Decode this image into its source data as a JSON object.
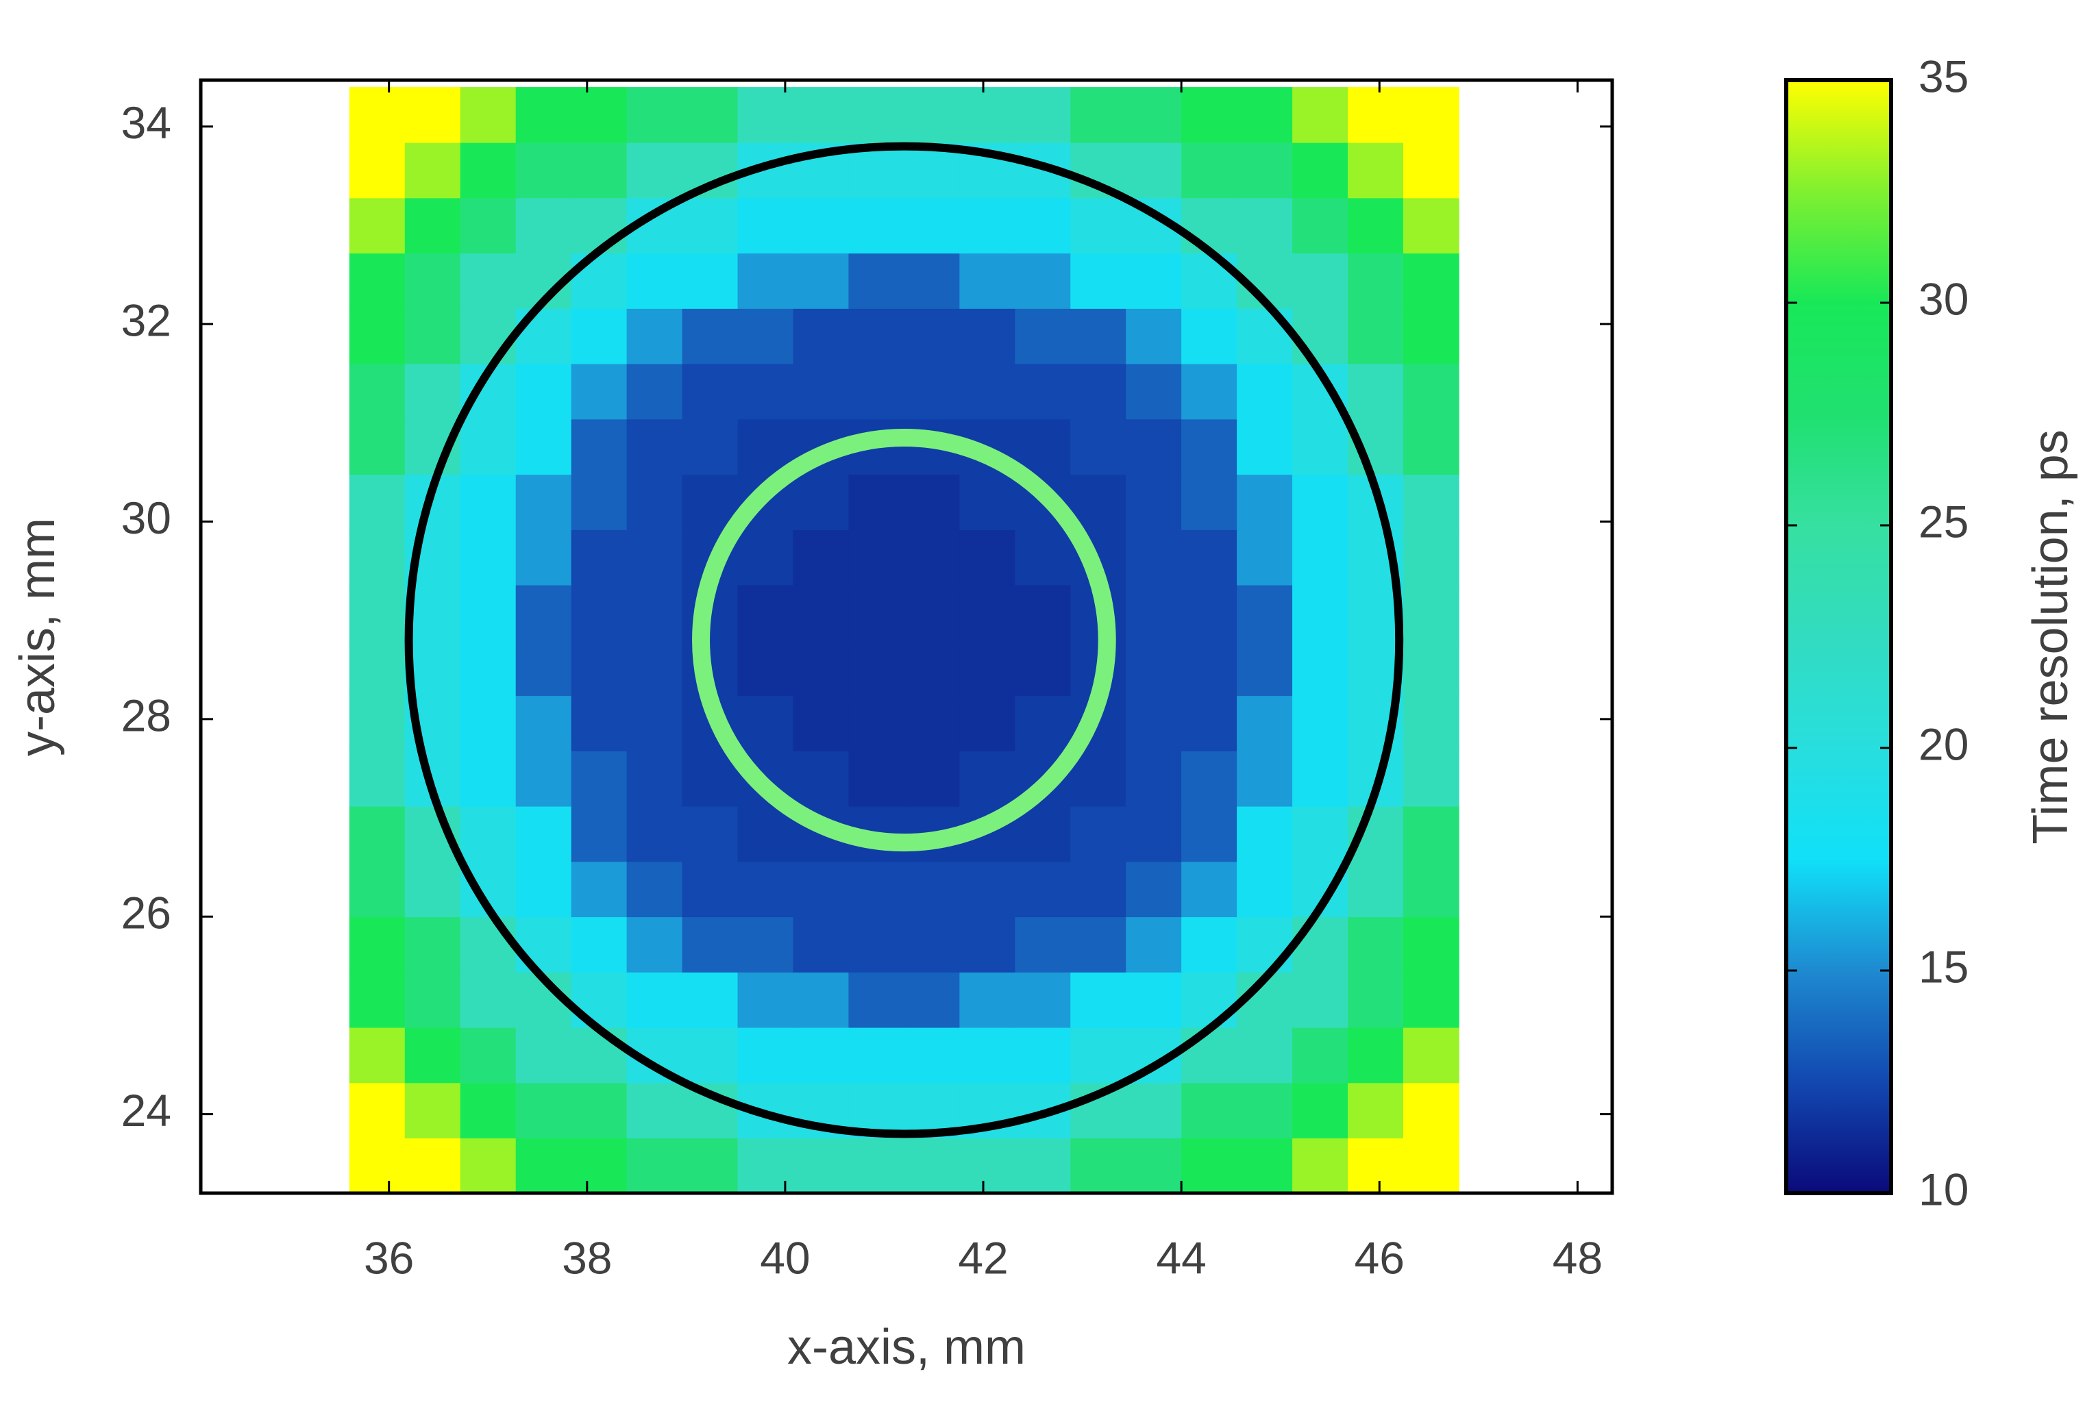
{
  "chart_data": {
    "type": "heatmap",
    "xlabel": "x-axis, mm",
    "ylabel": "y-axis, mm",
    "colorbar_label": "Time resolution, ps",
    "x": [
      35.88,
      36.44,
      37,
      37.56,
      38.12,
      38.68,
      39.24,
      39.8,
      40.36,
      40.92,
      41.48,
      42.04,
      42.6,
      43.16,
      43.72,
      44.28,
      44.84,
      45.4,
      45.96,
      46.52
    ],
    "y": [
      23.48,
      24.04,
      24.6,
      25.16,
      25.72,
      26.28,
      26.84,
      27.4,
      27.96,
      28.52,
      29.08,
      29.64,
      30.2,
      30.76,
      31.32,
      31.88,
      32.44,
      33,
      33.56,
      34.12
    ],
    "z": [
      [
        35,
        35,
        33,
        30,
        30,
        27,
        27,
        23,
        23,
        23,
        23,
        23,
        23,
        27,
        27,
        30,
        30,
        33,
        35,
        35
      ],
      [
        35,
        33,
        30,
        27,
        27,
        23,
        23,
        19.5,
        19.5,
        19.5,
        19.5,
        19.5,
        19.5,
        23,
        23,
        27,
        27,
        30,
        33,
        35
      ],
      [
        33,
        30,
        27,
        23,
        23,
        19.5,
        19.5,
        18,
        18,
        18,
        18,
        18,
        18,
        19.5,
        19.5,
        23,
        23,
        27,
        30,
        33
      ],
      [
        30,
        27,
        23,
        23,
        19.5,
        18,
        18,
        15.5,
        15.5,
        13.5,
        13.5,
        15.5,
        15.5,
        18,
        18,
        19.5,
        23,
        23,
        27,
        30
      ],
      [
        30,
        27,
        23,
        19.5,
        18,
        15.5,
        13.5,
        13.5,
        12.5,
        12.5,
        12.5,
        12.5,
        13.5,
        13.5,
        15.5,
        18,
        19.5,
        23,
        27,
        30
      ],
      [
        27,
        23,
        19.5,
        18,
        15.5,
        13.5,
        12.5,
        12.5,
        12.5,
        12.5,
        12.5,
        12.5,
        12.5,
        12.5,
        13.5,
        15.5,
        18,
        19.5,
        23,
        27
      ],
      [
        27,
        23,
        19.5,
        18,
        13.5,
        12.5,
        12.5,
        12,
        12,
        12,
        12,
        12,
        12,
        12.5,
        12.5,
        13.5,
        18,
        19.5,
        23,
        27
      ],
      [
        23,
        19.5,
        18,
        15.5,
        13.5,
        12.5,
        12,
        12,
        12,
        11.5,
        11.5,
        12,
        12,
        12,
        12.5,
        13.5,
        15.5,
        18,
        19.5,
        23
      ],
      [
        23,
        19.5,
        18,
        15.5,
        12.5,
        12.5,
        12,
        12,
        11.5,
        11.5,
        11.5,
        11.5,
        12,
        12,
        12.5,
        12.5,
        15.5,
        18,
        19.5,
        23
      ],
      [
        23,
        19.5,
        18,
        13.5,
        12.5,
        12.5,
        12,
        11.5,
        11.5,
        11.5,
        11.5,
        11.5,
        11.5,
        12,
        12.5,
        12.5,
        13.5,
        18,
        19.5,
        23
      ],
      [
        23,
        19.5,
        18,
        13.5,
        12.5,
        12.5,
        12,
        11.5,
        11.5,
        11.5,
        11.5,
        11.5,
        11.5,
        12,
        12.5,
        12.5,
        13.5,
        18,
        19.5,
        23
      ],
      [
        23,
        19.5,
        18,
        15.5,
        12.5,
        12.5,
        12,
        12,
        11.5,
        11.5,
        11.5,
        11.5,
        12,
        12,
        12.5,
        12.5,
        15.5,
        18,
        19.5,
        23
      ],
      [
        23,
        19.5,
        18,
        15.5,
        13.5,
        12.5,
        12,
        12,
        12,
        11.5,
        11.5,
        12,
        12,
        12,
        12.5,
        13.5,
        15.5,
        18,
        19.5,
        23
      ],
      [
        27,
        23,
        19.5,
        18,
        13.5,
        12.5,
        12.5,
        12,
        12,
        12,
        12,
        12,
        12,
        12.5,
        12.5,
        13.5,
        18,
        19.5,
        23,
        27
      ],
      [
        27,
        23,
        19.5,
        18,
        15.5,
        13.5,
        12.5,
        12.5,
        12.5,
        12.5,
        12.5,
        12.5,
        12.5,
        12.5,
        13.5,
        15.5,
        18,
        19.5,
        23,
        27
      ],
      [
        30,
        27,
        23,
        19.5,
        18,
        15.5,
        13.5,
        13.5,
        12.5,
        12.5,
        12.5,
        12.5,
        13.5,
        13.5,
        15.5,
        18,
        19.5,
        23,
        27,
        30
      ],
      [
        30,
        27,
        23,
        23,
        19.5,
        18,
        18,
        15.5,
        15.5,
        13.5,
        13.5,
        15.5,
        15.5,
        18,
        18,
        19.5,
        23,
        23,
        27,
        30
      ],
      [
        33,
        30,
        27,
        23,
        23,
        19.5,
        19.5,
        18,
        18,
        18,
        18,
        18,
        18,
        19.5,
        19.5,
        23,
        23,
        27,
        30,
        33
      ],
      [
        35,
        33,
        30,
        27,
        27,
        23,
        23,
        19.5,
        19.5,
        19.5,
        19.5,
        19.5,
        19.5,
        23,
        23,
        27,
        27,
        30,
        33,
        35
      ],
      [
        35,
        35,
        33,
        30,
        30,
        27,
        27,
        23,
        23,
        23,
        23,
        23,
        23,
        27,
        27,
        30,
        30,
        33,
        35,
        35
      ]
    ],
    "xlim": [
      34.1,
      48.35
    ],
    "ylim": [
      23.2,
      34.47
    ],
    "xticks": [
      36,
      38,
      40,
      42,
      44,
      46,
      48
    ],
    "yticks": [
      24,
      26,
      28,
      30,
      32,
      34
    ],
    "clim": [
      10,
      35
    ],
    "cticks": [
      10,
      15,
      20,
      25,
      30,
      35
    ],
    "colormap": [
      "#0a0a7a",
      "#1248b0",
      "#1e8ad0",
      "#10e0f8",
      "#28dede",
      "#32dcc0",
      "#36e0a0",
      "#20e070",
      "#18e858",
      "#80f030",
      "#ffff00"
    ],
    "circles": [
      {
        "cx": 41.2,
        "cy": 28.8,
        "r": 5,
        "color": "#000000"
      },
      {
        "cx": 41.2,
        "cy": 28.8,
        "r": 2.05,
        "color": "#7cf07c"
      }
    ]
  }
}
